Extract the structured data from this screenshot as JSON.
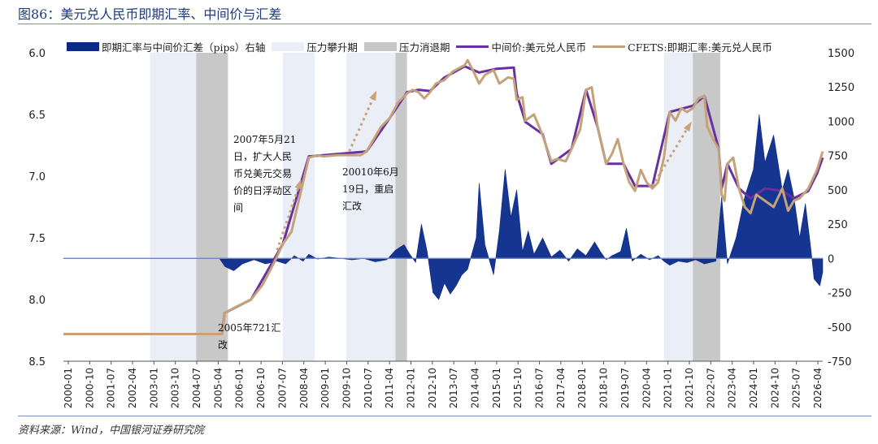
{
  "figure_title": "图86：美元兑人民币即期汇率、中间价与汇差",
  "source_note": "资料来源：Wind，中国银河证券研究院",
  "colors": {
    "spread": "#0a2a8a",
    "pressure_up": "#e9eef7",
    "pressure_down": "#c8c8c8",
    "central": "#6a2fa0",
    "spot": "#c4a27a",
    "arrow": "#c9a27a"
  },
  "chart_data": {
    "type": "area+line",
    "x_ticks": [
      "2000-01",
      "2000-10",
      "2001-07",
      "2002-04",
      "2003-01",
      "2003-10",
      "2004-07",
      "2005-04",
      "2006-01",
      "2006-10",
      "2007-07",
      "2008-04",
      "2009-01",
      "2009-10",
      "2010-07",
      "2011-04",
      "2012-01",
      "2012-10",
      "2013-07",
      "2014-04",
      "2015-01",
      "2015-10",
      "2016-07",
      "2017-04",
      "2018-01",
      "2018-10",
      "2019-07",
      "2020-04",
      "2021-01",
      "2021-10",
      "2022-07",
      "2023-04",
      "2024-01",
      "2024-10",
      "2025-07",
      "2026-04"
    ],
    "y_left": {
      "min": 6.0,
      "max": 8.5,
      "inverted": true,
      "ticks": [
        "6.0",
        "6.5",
        "7.0",
        "7.5",
        "8.0",
        "8.5"
      ]
    },
    "y_right": {
      "min": -750,
      "max": 1500,
      "ticks": [
        "1500",
        "1250",
        "1000",
        "750",
        "500",
        "250",
        "0",
        "-250",
        "-500",
        "-750"
      ]
    },
    "legend": [
      {
        "key": "spread",
        "label": "即期汇率与中间价汇差（pips）右轴",
        "kind": "area"
      },
      {
        "key": "pressure_up",
        "label": "压力攀升期",
        "kind": "box"
      },
      {
        "key": "pressure_down",
        "label": "压力消退期",
        "kind": "box"
      },
      {
        "key": "central",
        "label": "中间价:美元兑人民币",
        "kind": "line"
      },
      {
        "key": "spot",
        "label": "CFETS:即期汇率:美元兑人民币",
        "kind": "line"
      }
    ],
    "shaded_periods": [
      {
        "type": "up",
        "start": 2003.0,
        "end": 2004.6
      },
      {
        "type": "down",
        "start": 2004.6,
        "end": 2005.7
      },
      {
        "type": "up",
        "start": 2007.6,
        "end": 2008.7
      },
      {
        "type": "up",
        "start": 2009.8,
        "end": 2011.5
      },
      {
        "type": "down",
        "start": 2011.5,
        "end": 2011.9
      },
      {
        "type": "up",
        "start": 2020.8,
        "end": 2021.8
      },
      {
        "type": "down",
        "start": 2021.8,
        "end": 2022.75
      }
    ],
    "spot_series": [
      [
        2000.0,
        8.28
      ],
      [
        2005.5,
        8.28
      ],
      [
        2005.58,
        8.11
      ],
      [
        2005.9,
        8.07
      ],
      [
        2006.5,
        8.0
      ],
      [
        2006.9,
        7.88
      ],
      [
        2007.3,
        7.7
      ],
      [
        2007.6,
        7.55
      ],
      [
        2007.9,
        7.45
      ],
      [
        2008.1,
        7.25
      ],
      [
        2008.3,
        7.05
      ],
      [
        2008.5,
        6.85
      ],
      [
        2008.8,
        6.83
      ],
      [
        2009.0,
        6.84
      ],
      [
        2009.5,
        6.83
      ],
      [
        2010.3,
        6.83
      ],
      [
        2010.5,
        6.8
      ],
      [
        2010.8,
        6.68
      ],
      [
        2011.0,
        6.6
      ],
      [
        2011.3,
        6.53
      ],
      [
        2011.6,
        6.4
      ],
      [
        2011.9,
        6.33
      ],
      [
        2012.1,
        6.3
      ],
      [
        2012.3,
        6.32
      ],
      [
        2012.5,
        6.37
      ],
      [
        2012.7,
        6.32
      ],
      [
        2012.9,
        6.25
      ],
      [
        2013.2,
        6.22
      ],
      [
        2013.5,
        6.15
      ],
      [
        2013.9,
        6.1
      ],
      [
        2014.0,
        6.06
      ],
      [
        2014.2,
        6.15
      ],
      [
        2014.4,
        6.25
      ],
      [
        2014.6,
        6.18
      ],
      [
        2014.9,
        6.14
      ],
      [
        2015.1,
        6.25
      ],
      [
        2015.4,
        6.2
      ],
      [
        2015.6,
        6.21
      ],
      [
        2015.7,
        6.38
      ],
      [
        2015.9,
        6.36
      ],
      [
        2016.0,
        6.55
      ],
      [
        2016.3,
        6.5
      ],
      [
        2016.6,
        6.67
      ],
      [
        2016.9,
        6.88
      ],
      [
        2017.1,
        6.86
      ],
      [
        2017.4,
        6.88
      ],
      [
        2017.6,
        6.78
      ],
      [
        2017.9,
        6.62
      ],
      [
        2018.1,
        6.3
      ],
      [
        2018.3,
        6.28
      ],
      [
        2018.5,
        6.6
      ],
      [
        2018.8,
        6.9
      ],
      [
        2019.0,
        6.82
      ],
      [
        2019.2,
        6.7
      ],
      [
        2019.4,
        6.9
      ],
      [
        2019.6,
        7.05
      ],
      [
        2019.8,
        7.12
      ],
      [
        2020.0,
        6.95
      ],
      [
        2020.2,
        7.05
      ],
      [
        2020.4,
        7.1
      ],
      [
        2020.6,
        7.05
      ],
      [
        2020.8,
        6.85
      ],
      [
        2021.0,
        6.48
      ],
      [
        2021.2,
        6.55
      ],
      [
        2021.4,
        6.45
      ],
      [
        2021.6,
        6.48
      ],
      [
        2021.8,
        6.45
      ],
      [
        2022.0,
        6.37
      ],
      [
        2022.2,
        6.35
      ],
      [
        2022.3,
        6.6
      ],
      [
        2022.5,
        6.7
      ],
      [
        2022.7,
        6.78
      ],
      [
        2022.8,
        7.15
      ],
      [
        2022.9,
        7.2
      ],
      [
        2023.0,
        6.9
      ],
      [
        2023.2,
        6.85
      ],
      [
        2023.4,
        7.1
      ],
      [
        2023.6,
        7.25
      ],
      [
        2023.8,
        7.3
      ],
      [
        2024.0,
        7.15
      ],
      [
        2024.3,
        7.2
      ],
      [
        2024.6,
        7.25
      ],
      [
        2024.9,
        7.1
      ],
      [
        2025.1,
        7.28
      ],
      [
        2025.3,
        7.2
      ],
      [
        2025.5,
        7.18
      ],
      [
        2025.8,
        7.1
      ],
      [
        2026.1,
        6.95
      ],
      [
        2026.3,
        6.8
      ]
    ],
    "central_series": [
      [
        2005.5,
        8.27
      ],
      [
        2005.58,
        8.11
      ],
      [
        2006.5,
        8.0
      ],
      [
        2007.6,
        7.55
      ],
      [
        2008.5,
        6.84
      ],
      [
        2010.5,
        6.8
      ],
      [
        2011.3,
        6.53
      ],
      [
        2011.9,
        6.32
      ],
      [
        2012.3,
        6.3
      ],
      [
        2012.7,
        6.31
      ],
      [
        2013.2,
        6.2
      ],
      [
        2013.9,
        6.11
      ],
      [
        2014.4,
        6.16
      ],
      [
        2015.0,
        6.13
      ],
      [
        2015.6,
        6.12
      ],
      [
        2015.7,
        6.33
      ],
      [
        2016.0,
        6.56
      ],
      [
        2016.6,
        6.66
      ],
      [
        2016.9,
        6.9
      ],
      [
        2017.6,
        6.78
      ],
      [
        2018.1,
        6.3
      ],
      [
        2018.5,
        6.6
      ],
      [
        2018.8,
        6.9
      ],
      [
        2019.4,
        6.9
      ],
      [
        2019.8,
        7.08
      ],
      [
        2020.4,
        7.08
      ],
      [
        2021.0,
        6.48
      ],
      [
        2021.8,
        6.43
      ],
      [
        2022.2,
        6.35
      ],
      [
        2022.7,
        6.78
      ],
      [
        2022.8,
        7.1
      ],
      [
        2023.0,
        6.9
      ],
      [
        2023.4,
        7.1
      ],
      [
        2023.8,
        7.18
      ],
      [
        2024.3,
        7.1
      ],
      [
        2024.9,
        7.12
      ],
      [
        2025.3,
        7.18
      ],
      [
        2025.8,
        7.12
      ],
      [
        2026.1,
        6.98
      ],
      [
        2026.3,
        6.85
      ]
    ],
    "spread_series": [
      [
        2000.0,
        0
      ],
      [
        2005.4,
        0
      ],
      [
        2005.6,
        -60
      ],
      [
        2005.9,
        -90
      ],
      [
        2006.2,
        -40
      ],
      [
        2006.6,
        -10
      ],
      [
        2007.0,
        -40
      ],
      [
        2007.4,
        -20
      ],
      [
        2007.7,
        -40
      ],
      [
        2008.0,
        20
      ],
      [
        2008.3,
        -20
      ],
      [
        2008.5,
        30
      ],
      [
        2008.8,
        -5
      ],
      [
        2009.2,
        10
      ],
      [
        2009.6,
        0
      ],
      [
        2010.0,
        -10
      ],
      [
        2010.4,
        0
      ],
      [
        2010.8,
        -25
      ],
      [
        2011.2,
        -10
      ],
      [
        2011.5,
        60
      ],
      [
        2011.8,
        100
      ],
      [
        2012.0,
        30
      ],
      [
        2012.2,
        -30
      ],
      [
        2012.4,
        250
      ],
      [
        2012.6,
        50
      ],
      [
        2012.8,
        -250
      ],
      [
        2013.0,
        -300
      ],
      [
        2013.2,
        -180
      ],
      [
        2013.4,
        -260
      ],
      [
        2013.6,
        -200
      ],
      [
        2013.8,
        -120
      ],
      [
        2014.0,
        -80
      ],
      [
        2014.3,
        150
      ],
      [
        2014.4,
        550
      ],
      [
        2014.6,
        100
      ],
      [
        2014.9,
        -120
      ],
      [
        2015.1,
        200
      ],
      [
        2015.3,
        650
      ],
      [
        2015.5,
        300
      ],
      [
        2015.7,
        500
      ],
      [
        2015.9,
        50
      ],
      [
        2016.1,
        200
      ],
      [
        2016.3,
        30
      ],
      [
        2016.6,
        150
      ],
      [
        2016.9,
        10
      ],
      [
        2017.2,
        60
      ],
      [
        2017.5,
        -20
      ],
      [
        2017.8,
        70
      ],
      [
        2018.1,
        20
      ],
      [
        2018.4,
        120
      ],
      [
        2018.6,
        50
      ],
      [
        2018.8,
        -10
      ],
      [
        2019.0,
        20
      ],
      [
        2019.3,
        50
      ],
      [
        2019.5,
        220
      ],
      [
        2019.7,
        -20
      ],
      [
        2020.0,
        30
      ],
      [
        2020.3,
        -10
      ],
      [
        2020.6,
        20
      ],
      [
        2020.8,
        -20
      ],
      [
        2021.0,
        -50
      ],
      [
        2021.3,
        -20
      ],
      [
        2021.6,
        -30
      ],
      [
        2021.9,
        -10
      ],
      [
        2022.2,
        -40
      ],
      [
        2022.6,
        -20
      ],
      [
        2022.8,
        450
      ],
      [
        2022.9,
        200
      ],
      [
        2023.0,
        -40
      ],
      [
        2023.3,
        150
      ],
      [
        2023.6,
        450
      ],
      [
        2023.9,
        650
      ],
      [
        2024.1,
        1050
      ],
      [
        2024.3,
        700
      ],
      [
        2024.6,
        900
      ],
      [
        2024.9,
        500
      ],
      [
        2025.1,
        650
      ],
      [
        2025.3,
        450
      ],
      [
        2025.5,
        150
      ],
      [
        2025.7,
        400
      ],
      [
        2025.9,
        50
      ],
      [
        2026.0,
        -150
      ],
      [
        2026.2,
        -200
      ],
      [
        2026.3,
        -100
      ]
    ],
    "annotations": [
      {
        "text": [
          "2007年5月21",
          "日，扩大人民",
          "币兑美元交易",
          "价的日浮动区",
          "间"
        ]
      },
      {
        "text": [
          "20010年6月",
          "19日，重启",
          "汇改"
        ]
      },
      {
        "text": [
          "2005年721汇",
          "改"
        ]
      }
    ]
  }
}
